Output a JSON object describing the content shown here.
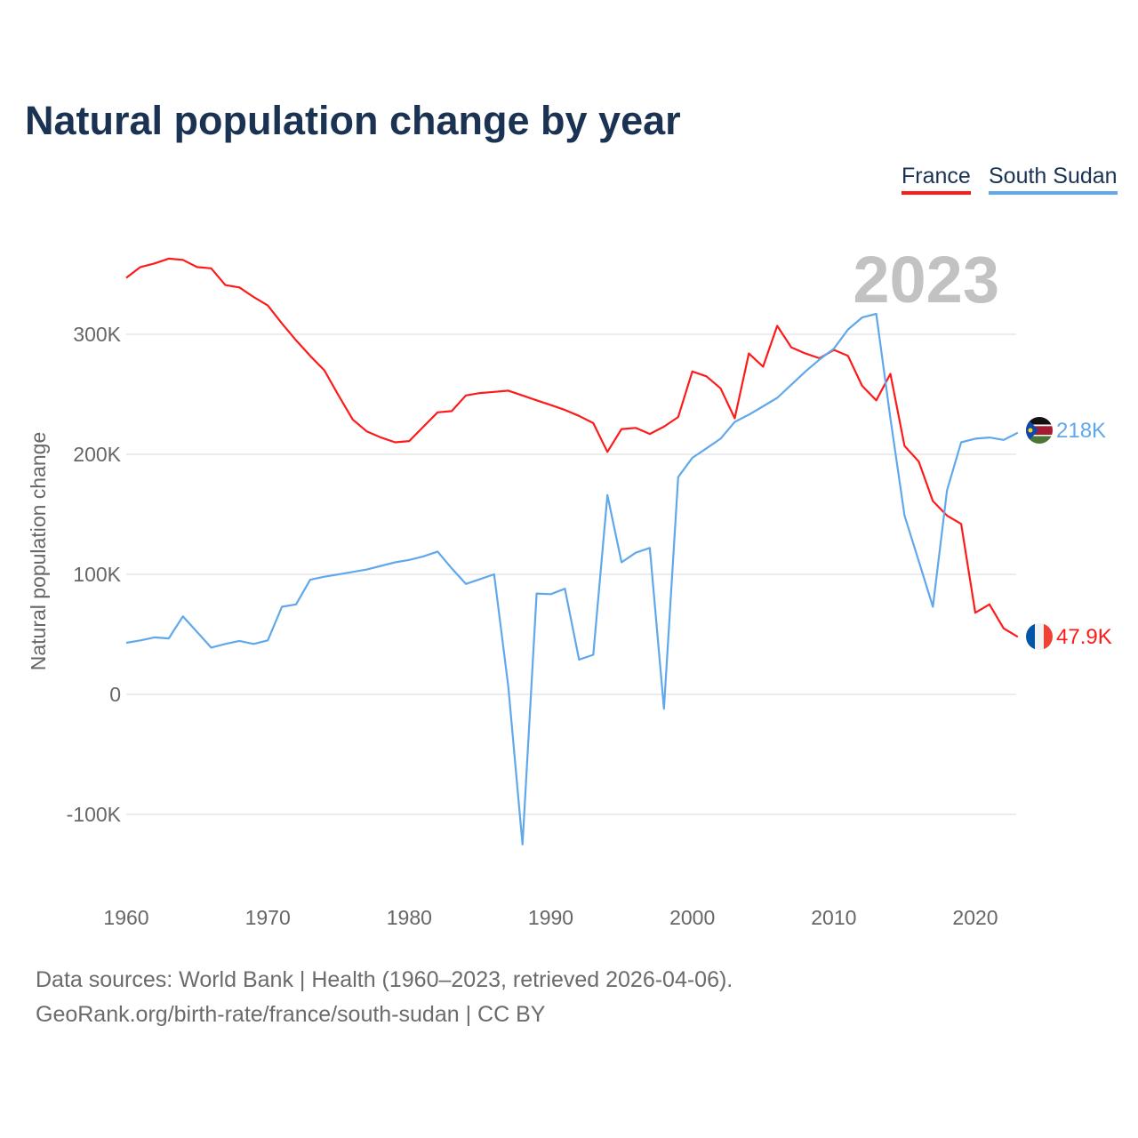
{
  "title": "Natural population change by year",
  "legend": [
    {
      "label": "France",
      "color": "#ff1a1a"
    },
    {
      "label": "South Sudan",
      "color": "#5fa8ec"
    }
  ],
  "year_overlay": "2023",
  "footer": {
    "line1": "Data sources: World Bank | Health (1960–2023, retrieved 2026-04-06).",
    "line2": "GeoRank.org/birth-rate/france/south-sudan | CC BY"
  },
  "chart_data": {
    "type": "line",
    "title": "Natural population change by year",
    "xlabel": "",
    "ylabel": "Natural population change",
    "xlim": [
      1960,
      2023
    ],
    "ylim": [
      -150000,
      350000
    ],
    "x_ticks": [
      1960,
      1970,
      1980,
      1990,
      2000,
      2010,
      2020
    ],
    "y_ticks": [
      -100000,
      0,
      100000,
      200000,
      300000
    ],
    "y_tick_labels": [
      "-100K",
      "0",
      "100K",
      "200K",
      "300K"
    ],
    "grid": true,
    "legend_position": "top-right",
    "x": [
      1960,
      1961,
      1962,
      1963,
      1964,
      1965,
      1966,
      1967,
      1968,
      1969,
      1970,
      1971,
      1972,
      1973,
      1974,
      1975,
      1976,
      1977,
      1978,
      1979,
      1980,
      1981,
      1982,
      1983,
      1984,
      1985,
      1986,
      1987,
      1988,
      1989,
      1990,
      1991,
      1992,
      1993,
      1994,
      1995,
      1996,
      1997,
      1998,
      1999,
      2000,
      2001,
      2002,
      2003,
      2004,
      2005,
      2006,
      2007,
      2008,
      2009,
      2010,
      2011,
      2012,
      2013,
      2014,
      2015,
      2016,
      2017,
      2018,
      2019,
      2020,
      2021,
      2022,
      2023
    ],
    "series": [
      {
        "name": "France",
        "color": "#ff1a1a",
        "end_label": "47.9K",
        "values": [
          347000,
          356000,
          359000,
          363000,
          362000,
          356000,
          355000,
          341000,
          339000,
          331000,
          324000,
          309000,
          295000,
          282000,
          270000,
          249000,
          229000,
          219000,
          214000,
          210000,
          211000,
          223000,
          235000,
          236000,
          249000,
          251000,
          252000,
          253000,
          249000,
          245000,
          241000,
          237000,
          232000,
          226000,
          202000,
          221000,
          222000,
          217000,
          223000,
          231000,
          269000,
          265000,
          255000,
          230000,
          284000,
          273000,
          307000,
          289000,
          284000,
          280000,
          287000,
          282000,
          257000,
          245000,
          267000,
          207000,
          194000,
          161000,
          149000,
          142000,
          68000,
          75000,
          55000,
          47900
        ]
      },
      {
        "name": "South Sudan",
        "color": "#5fa8ec",
        "end_label": "218K",
        "values": [
          43000,
          45000,
          47500,
          46600,
          65000,
          52000,
          39000,
          42000,
          44500,
          42000,
          45000,
          73000,
          75000,
          95500,
          98000,
          100000,
          102000,
          104000,
          107000,
          110000,
          112000,
          115000,
          119000,
          105000,
          92000,
          96000,
          100000,
          6000,
          -125000,
          84000,
          83500,
          88000,
          29000,
          33000,
          166000,
          110000,
          118000,
          122000,
          -12000,
          181000,
          197000,
          205000,
          213000,
          227000,
          233000,
          240000,
          247000,
          258000,
          269000,
          279000,
          288000,
          304000,
          314000,
          317000,
          230000,
          149000,
          111000,
          73000,
          170000,
          210000,
          213000,
          214000,
          212000,
          218000
        ]
      }
    ]
  }
}
